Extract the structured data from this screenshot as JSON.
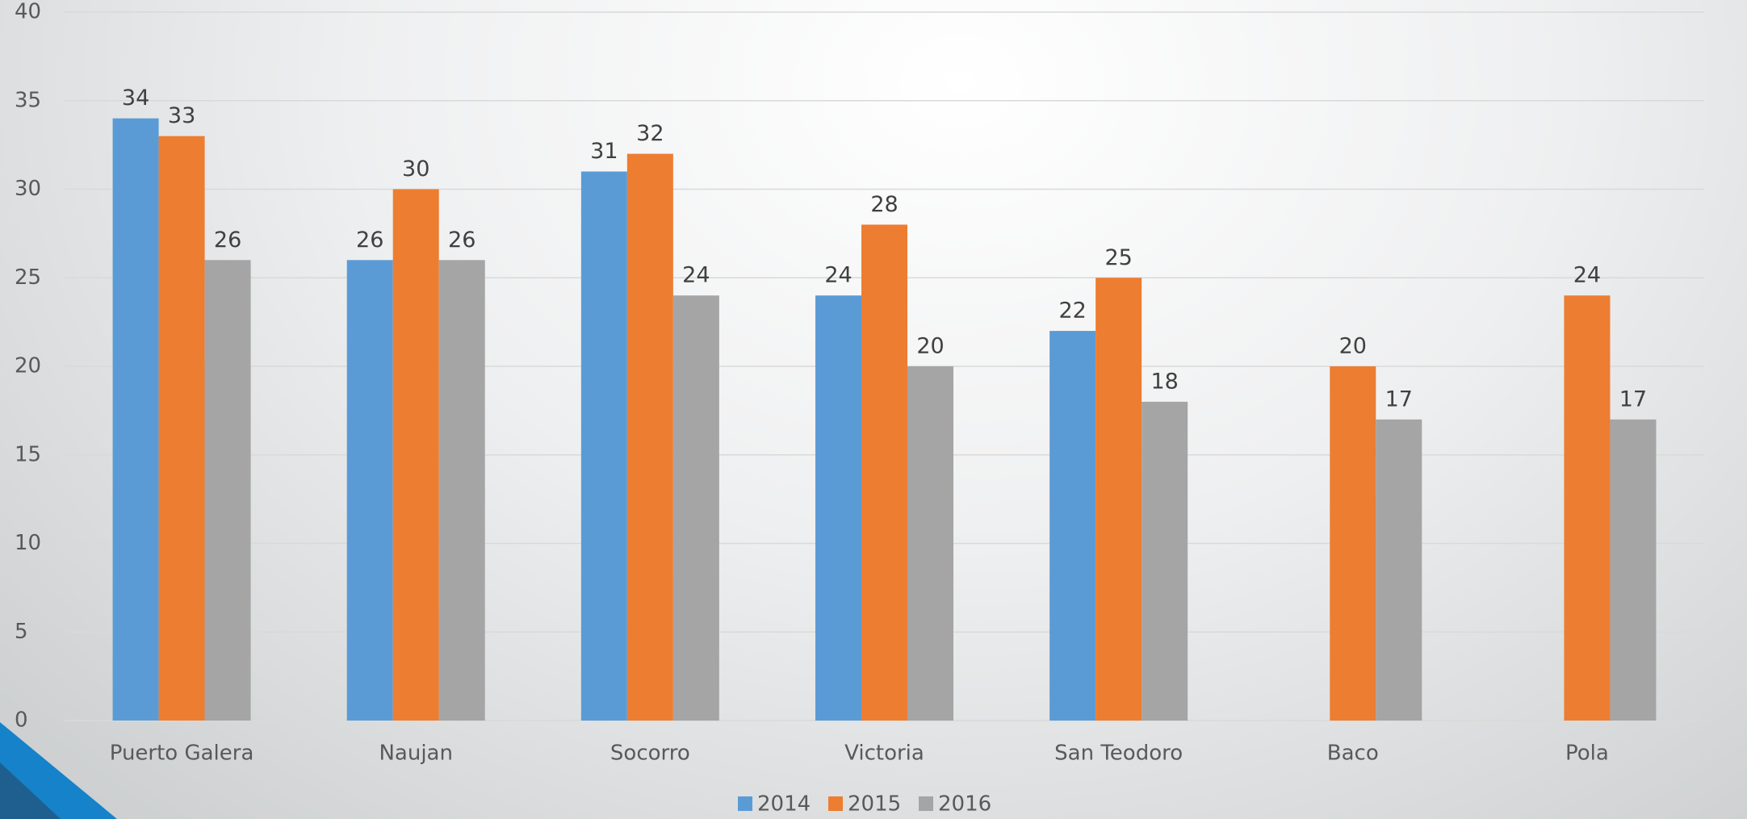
{
  "chart_data": {
    "type": "bar",
    "categories": [
      "Puerto Galera",
      "Naujan",
      "Socorro",
      "Victoria",
      "San Teodoro",
      "Baco",
      "Pola"
    ],
    "series": [
      {
        "name": "2014",
        "color": "#5b9bd5",
        "values": [
          34,
          26,
          31,
          24,
          22,
          null,
          null
        ]
      },
      {
        "name": "2015",
        "color": "#ed7d31",
        "values": [
          33,
          30,
          32,
          28,
          25,
          20,
          24
        ]
      },
      {
        "name": "2016",
        "color": "#a5a5a5",
        "values": [
          26,
          26,
          24,
          20,
          18,
          17,
          17
        ]
      }
    ],
    "ylim": [
      0,
      40
    ],
    "yticks": [
      0,
      5,
      10,
      15,
      20,
      25,
      30,
      35,
      40
    ],
    "grid": true,
    "legend": "bottom"
  }
}
